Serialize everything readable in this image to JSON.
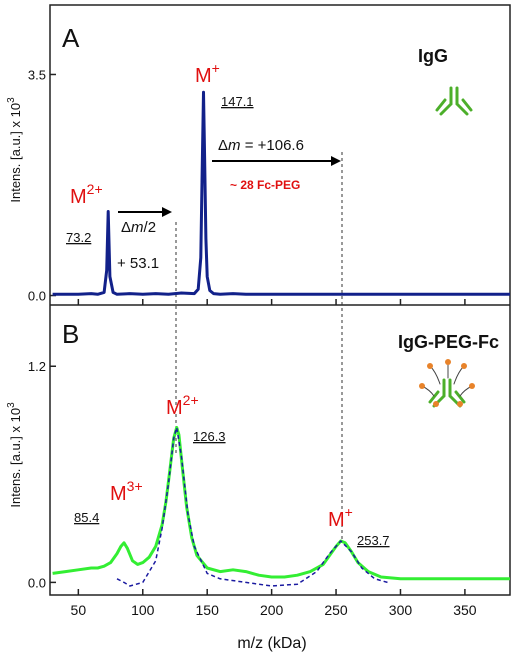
{
  "chart_data": [
    {
      "type": "line",
      "panel": "A",
      "annotations": [
        [
          {
            "t": "IgG"
          }
        ],
        [
          {
            "t": "M"
          },
          {
            "t": "2+",
            "style": "sup"
          }
        ],
        [
          {
            "t": "73.2"
          }
        ],
        [
          {
            "t": "Δ"
          },
          {
            "t": "m",
            "style": "italic"
          },
          {
            "t": "/2"
          }
        ],
        [
          {
            "t": "+ 53.1"
          }
        ],
        [
          {
            "t": "M"
          },
          {
            "t": "+",
            "style": "sup"
          }
        ],
        [
          {
            "t": "147.1"
          }
        ],
        [
          {
            "t": "Δ"
          },
          {
            "t": "m",
            "style": "italic"
          },
          {
            "t": " = +106.6"
          }
        ],
        [
          {
            "t": "~ 28 Fc-PEG"
          }
        ]
      ],
      "ylabel": "Intens. [a.u.] x 10",
      "ylabel_sup": "3",
      "xlim": [
        28,
        385
      ],
      "xticks": [
        50,
        100,
        150,
        200,
        250,
        300,
        350
      ],
      "ylim": [
        -0.15,
        4.6
      ],
      "yticks": [
        {
          "value": 0,
          "label": "0.0"
        },
        3.5
      ],
      "series": [
        {
          "color": "#12218a",
          "style": "solid",
          "x": [
            30,
            40,
            50,
            60,
            65,
            70,
            72,
            73.2,
            74.5,
            77,
            80,
            90,
            100,
            110,
            120,
            130,
            140,
            143,
            145,
            146,
            147.1,
            148,
            149,
            150,
            152,
            155,
            160,
            170,
            180,
            200,
            250,
            300,
            350,
            385
          ],
          "values": [
            0.02,
            0.02,
            0.02,
            0.03,
            0.02,
            0.05,
            0.4,
            1.33,
            0.3,
            0.05,
            0.02,
            0.03,
            0.02,
            0.03,
            0.02,
            0.04,
            0.03,
            0.1,
            0.6,
            1.8,
            3.22,
            2.2,
            0.9,
            0.3,
            0.08,
            0.03,
            0.02,
            0.03,
            0.02,
            0.02,
            0.02,
            0.02,
            0.02,
            0.02
          ]
        }
      ]
    },
    {
      "type": "line",
      "panel": "B",
      "annotations": [
        [
          {
            "t": "IgG-PEG-Fc"
          }
        ],
        [
          {
            "t": "M"
          },
          {
            "t": "2+",
            "style": "sup"
          }
        ],
        [
          {
            "t": "126.3"
          }
        ],
        [
          {
            "t": "M"
          },
          {
            "t": "3+",
            "style": "sup"
          }
        ],
        [
          {
            "t": "85.4"
          }
        ],
        [
          {
            "t": "M"
          },
          {
            "t": "+",
            "style": "sup"
          }
        ],
        [
          {
            "t": "253.7"
          }
        ]
      ],
      "ylabel": "Intens. [a.u.] x 10",
      "ylabel_sup": "3",
      "xlabel": "m/z (kDa)",
      "xlim": [
        28,
        385
      ],
      "xticks": [
        50,
        100,
        150,
        200,
        250,
        300,
        350
      ],
      "ylim": [
        -0.07,
        1.54
      ],
      "yticks": [
        {
          "value": 0,
          "label": "0.0"
        },
        1.2
      ],
      "series": [
        {
          "color": "#33ee33",
          "style": "solid",
          "x": [
            30,
            40,
            50,
            60,
            65,
            70,
            75,
            80,
            83,
            85.4,
            88,
            92,
            96,
            100,
            105,
            110,
            115,
            118,
            121,
            124,
            126.3,
            128,
            131,
            134,
            138,
            142,
            150,
            160,
            170,
            180,
            190,
            200,
            210,
            220,
            230,
            240,
            245,
            250,
            253.7,
            257,
            262,
            267,
            275,
            285,
            300,
            320,
            350,
            385
          ],
          "values": [
            0.05,
            0.06,
            0.07,
            0.08,
            0.08,
            0.09,
            0.11,
            0.16,
            0.2,
            0.22,
            0.19,
            0.12,
            0.1,
            0.11,
            0.14,
            0.2,
            0.32,
            0.45,
            0.62,
            0.8,
            0.86,
            0.82,
            0.62,
            0.42,
            0.25,
            0.15,
            0.08,
            0.06,
            0.07,
            0.06,
            0.04,
            0.03,
            0.03,
            0.04,
            0.06,
            0.1,
            0.15,
            0.2,
            0.23,
            0.22,
            0.17,
            0.11,
            0.06,
            0.03,
            0.02,
            0.02,
            0.02,
            0.02
          ]
        },
        {
          "color": "#1a1aa0",
          "style": "dashed",
          "x": [
            80,
            85.4,
            90,
            100,
            110,
            115,
            120,
            124,
            126.3,
            130,
            135,
            140,
            150,
            160,
            180,
            200,
            220,
            235,
            245,
            253.7,
            262,
            270,
            280,
            290
          ],
          "values": [
            0.02,
            0.0,
            -0.02,
            0.0,
            0.12,
            0.3,
            0.55,
            0.8,
            0.86,
            0.7,
            0.38,
            0.2,
            0.05,
            0.02,
            0.0,
            -0.02,
            -0.01,
            0.06,
            0.16,
            0.23,
            0.17,
            0.08,
            0.02,
            0.0
          ]
        }
      ]
    }
  ]
}
